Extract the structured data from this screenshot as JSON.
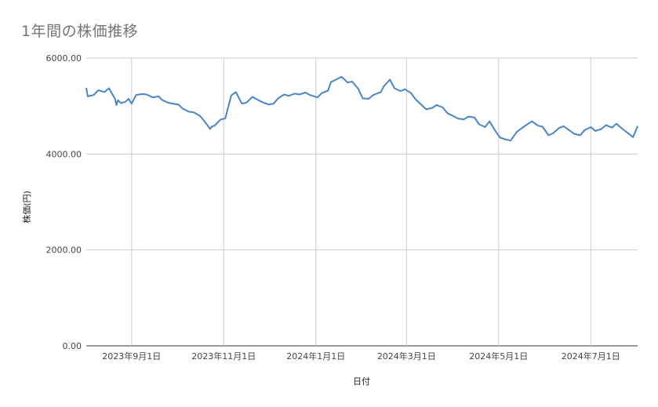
{
  "chart_data": {
    "type": "line",
    "title": "1年間の株価推移",
    "xlabel": "日付",
    "ylabel": "株価(円)",
    "ylim": [
      0,
      6000
    ],
    "y_ticks": [
      "0.00",
      "2000.00",
      "4000.00",
      "6000.00"
    ],
    "x_ticks": [
      "2023年9月1日",
      "2023年11月1日",
      "2024年1月1日",
      "2024年3月1日",
      "2024年5月1日",
      "2024年7月1日"
    ],
    "x_tick_dates": [
      "2023-09-01",
      "2023-11-01",
      "2024-01-01",
      "2024-03-01",
      "2024-05-01",
      "2024-07-01"
    ],
    "xlim": [
      "2023-08-02",
      "2024-08-01"
    ],
    "grid": true,
    "legend": "none",
    "line_color": "#4a86c5",
    "series": [
      {
        "x": [
          "2023-08-02",
          "2023-08-03",
          "2023-08-07",
          "2023-08-10",
          "2023-08-14",
          "2023-08-17",
          "2023-08-21",
          "2023-08-22",
          "2023-08-23",
          "2023-08-25",
          "2023-08-28",
          "2023-08-30",
          "2023-09-01",
          "2023-09-04",
          "2023-09-08",
          "2023-09-11",
          "2023-09-15",
          "2023-09-19",
          "2023-09-21",
          "2023-09-25",
          "2023-09-28",
          "2023-10-02",
          "2023-10-05",
          "2023-10-09",
          "2023-10-12",
          "2023-10-16",
          "2023-10-18",
          "2023-10-20",
          "2023-10-23",
          "2023-10-24",
          "2023-10-26",
          "2023-10-30",
          "2023-11-02",
          "2023-11-06",
          "2023-11-09",
          "2023-11-13",
          "2023-11-16",
          "2023-11-20",
          "2023-11-24",
          "2023-11-28",
          "2023-12-01",
          "2023-12-04",
          "2023-12-07",
          "2023-12-11",
          "2023-12-14",
          "2023-12-18",
          "2023-12-21",
          "2023-12-25",
          "2023-12-28",
          "2024-01-02",
          "2024-01-05",
          "2024-01-09",
          "2024-01-11",
          "2024-01-15",
          "2024-01-18",
          "2024-01-22",
          "2024-01-25",
          "2024-01-29",
          "2024-02-01",
          "2024-02-05",
          "2024-02-08",
          "2024-02-13",
          "2024-02-15",
          "2024-02-19",
          "2024-02-22",
          "2024-02-26",
          "2024-02-29",
          "2024-03-04",
          "2024-03-07",
          "2024-03-11",
          "2024-03-14",
          "2024-03-18",
          "2024-03-21",
          "2024-03-25",
          "2024-03-28",
          "2024-04-01",
          "2024-04-04",
          "2024-04-08",
          "2024-04-11",
          "2024-04-15",
          "2024-04-18",
          "2024-04-22",
          "2024-04-25",
          "2024-04-29",
          "2024-05-02",
          "2024-05-06",
          "2024-05-09",
          "2024-05-13",
          "2024-05-16",
          "2024-05-20",
          "2024-05-23",
          "2024-05-27",
          "2024-05-30",
          "2024-06-03",
          "2024-06-06",
          "2024-06-10",
          "2024-06-13",
          "2024-06-17",
          "2024-06-20",
          "2024-06-24",
          "2024-06-27",
          "2024-07-01",
          "2024-07-04",
          "2024-07-08",
          "2024-07-11",
          "2024-07-15",
          "2024-07-18",
          "2024-07-22",
          "2024-07-25",
          "2024-07-29",
          "2024-08-01"
        ],
        "values": [
          5380,
          5200,
          5230,
          5330,
          5290,
          5370,
          5150,
          5020,
          5120,
          5060,
          5090,
          5150,
          5050,
          5230,
          5250,
          5240,
          5180,
          5200,
          5130,
          5070,
          5050,
          5030,
          4940,
          4880,
          4870,
          4800,
          4730,
          4650,
          4520,
          4570,
          4590,
          4720,
          4740,
          5220,
          5290,
          5050,
          5070,
          5190,
          5120,
          5060,
          5030,
          5050,
          5160,
          5240,
          5210,
          5260,
          5240,
          5280,
          5230,
          5180,
          5270,
          5320,
          5500,
          5560,
          5610,
          5490,
          5510,
          5360,
          5160,
          5150,
          5230,
          5290,
          5410,
          5550,
          5370,
          5310,
          5350,
          5270,
          5140,
          5020,
          4930,
          4960,
          5020,
          4970,
          4850,
          4790,
          4740,
          4720,
          4780,
          4760,
          4620,
          4560,
          4680,
          4470,
          4340,
          4300,
          4280,
          4460,
          4530,
          4620,
          4680,
          4590,
          4570,
          4390,
          4430,
          4540,
          4580,
          4490,
          4420,
          4390,
          4500,
          4560,
          4480,
          4520,
          4600,
          4550,
          4630,
          4520,
          4450,
          4350,
          4580
        ]
      }
    ]
  }
}
